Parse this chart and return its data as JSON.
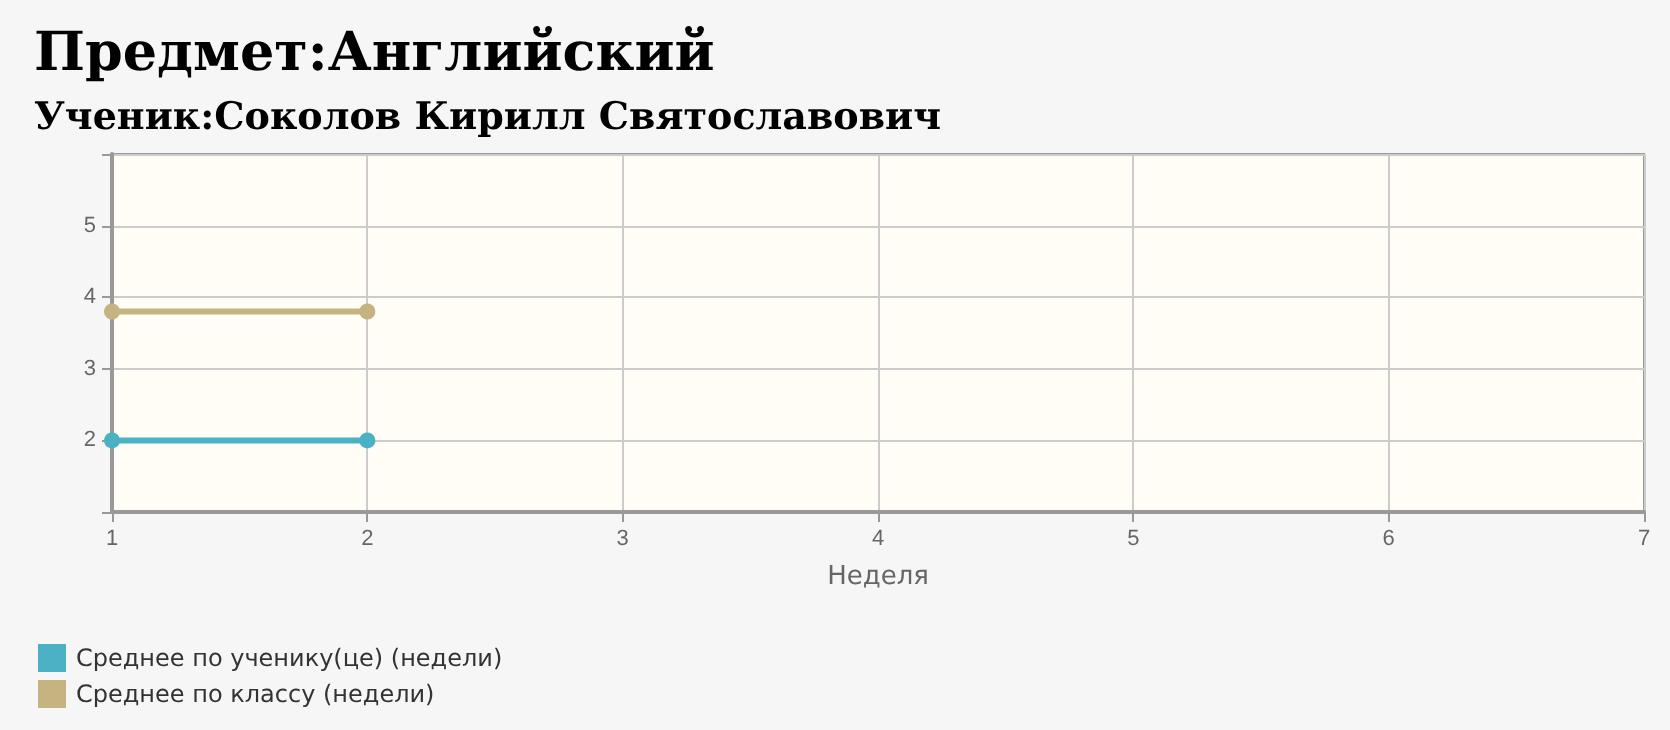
{
  "chart_data": {
    "type": "line",
    "title": "Предмет:Английский",
    "subtitle": "Ученик:Соколов Кирилл Святославович",
    "xlabel": "Неделя",
    "x": [
      1,
      2
    ],
    "series": [
      {
        "name": "Среднее по ученику(це) (недели)",
        "color": "#4bb2c5",
        "values": [
          2,
          2
        ]
      },
      {
        "name": "Среднее по классу (недели)",
        "color": "#c5b47f",
        "values": [
          3.8,
          3.8
        ]
      }
    ],
    "xlim": [
      1,
      7
    ],
    "xticks": [
      1,
      2,
      3,
      4,
      5,
      6,
      7
    ],
    "ylim": [
      1,
      6
    ],
    "yticks": [
      {
        "value": 1,
        "label": null
      },
      2,
      3,
      4,
      5,
      {
        "value": 6,
        "label": null
      }
    ],
    "grid": true,
    "legend": "bottom left",
    "marker": "circle",
    "line_style": "solid"
  }
}
